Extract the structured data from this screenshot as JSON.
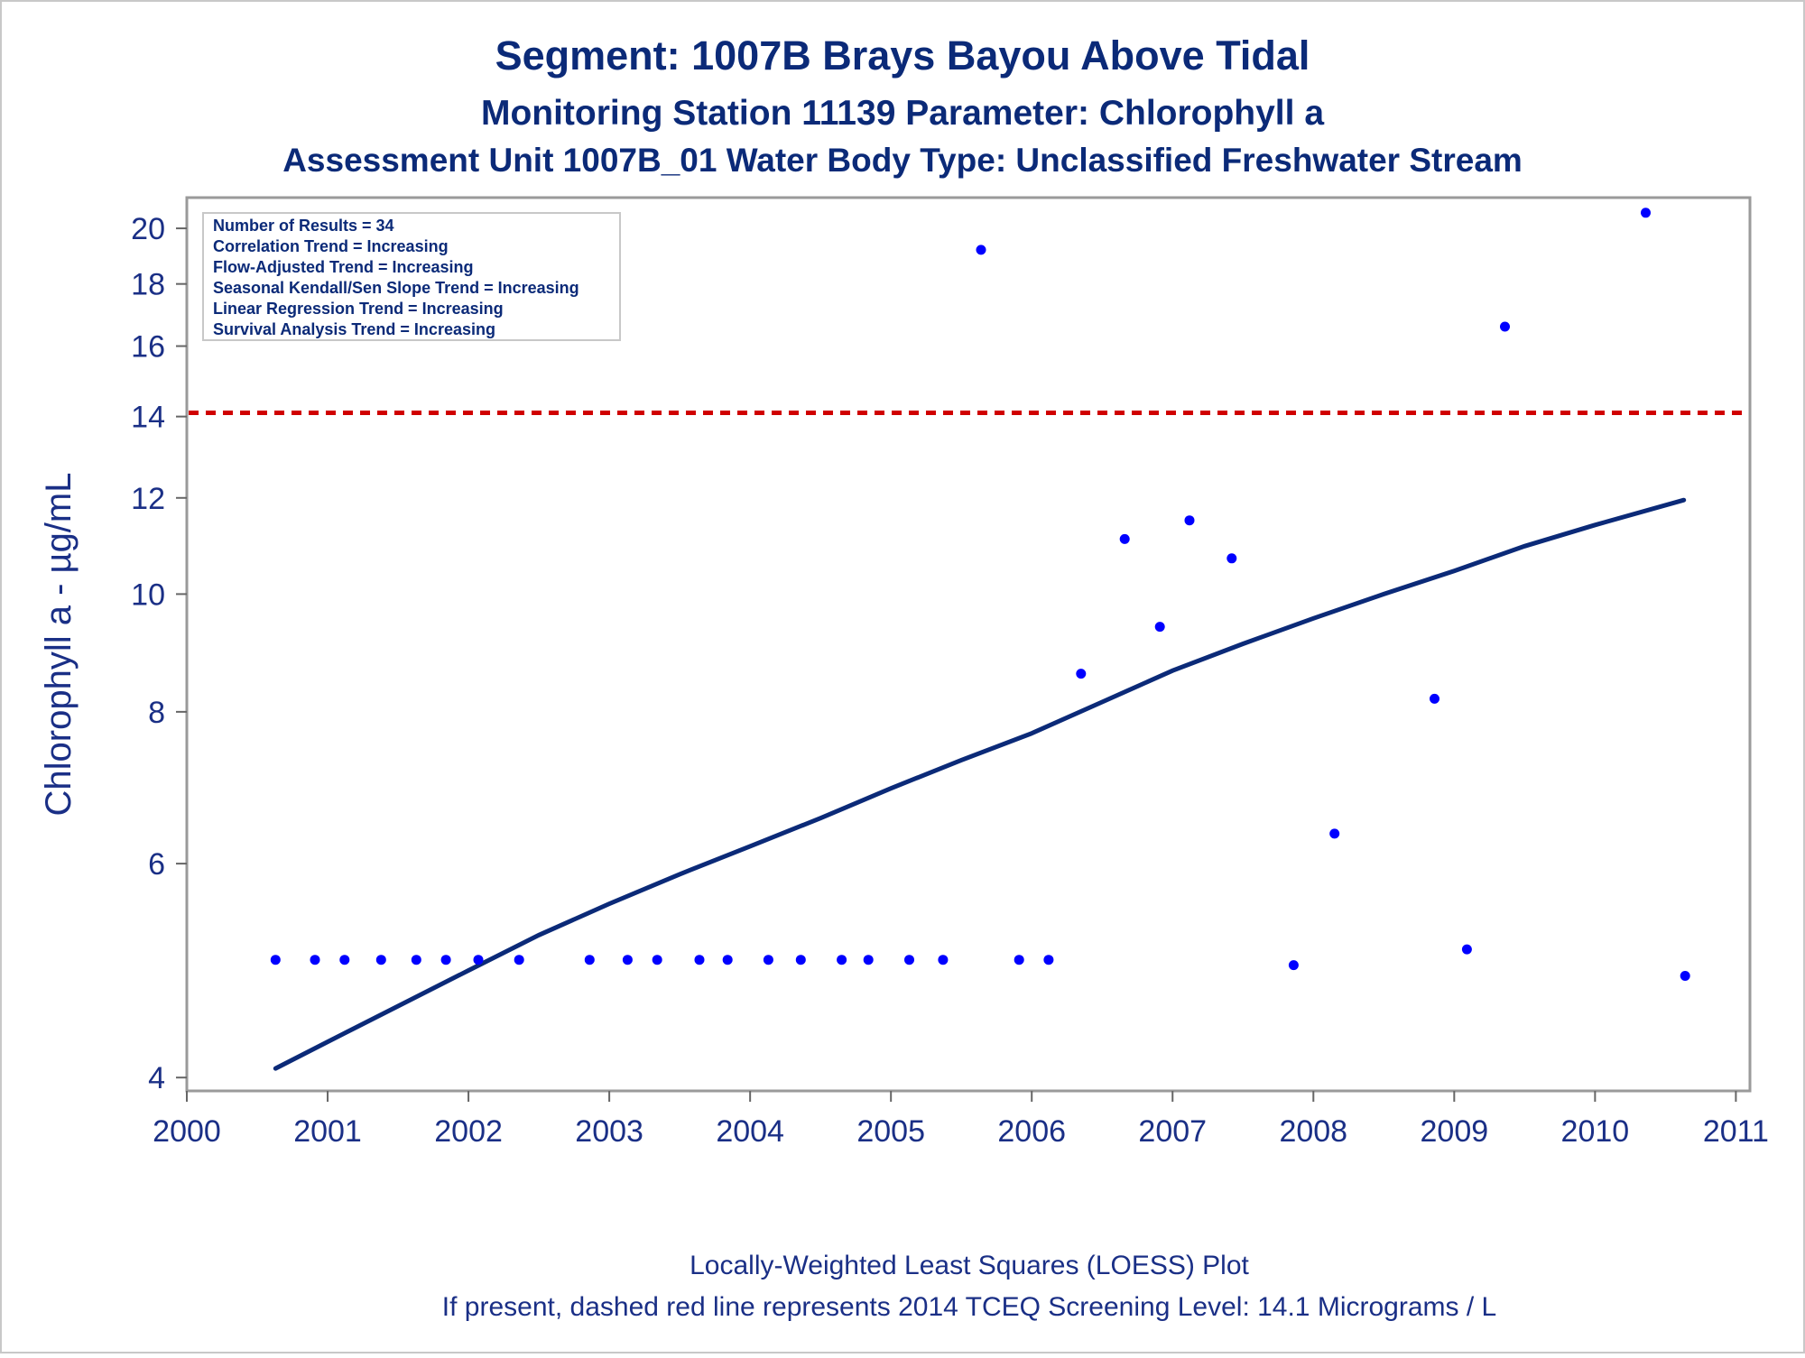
{
  "chart_data": {
    "type": "scatter",
    "title": "Segment: 1007B  Brays Bayou Above Tidal",
    "subtitle1": "Monitoring Station 11139 Parameter: Chlorophyll a",
    "subtitle2": "Assessment Unit 1007B_01   Water Body Type: Unclassified Freshwater Stream",
    "ylabel": "Chlorophyll a -  µg/mL",
    "xlabel": "",
    "x_ticks": [
      "2000",
      "2001",
      "2002",
      "2003",
      "2004",
      "2005",
      "2006",
      "2007",
      "2008",
      "2009",
      "2010",
      "2011"
    ],
    "x_tick_values": [
      2000,
      2001,
      2002,
      2003,
      2004,
      2005,
      2006,
      2007,
      2008,
      2009,
      2010,
      2011
    ],
    "y_ticks": [
      "4",
      "6",
      "8",
      "10",
      "12",
      "14",
      "16",
      "18",
      "20"
    ],
    "y_tick_values": [
      4,
      6,
      8,
      10,
      12,
      14,
      16,
      18,
      20
    ],
    "xlim": [
      2000,
      2011.1
    ],
    "ylim": [
      3.9,
      21.2
    ],
    "y_scale": "log",
    "grid": false,
    "legend_placement": "top-left",
    "legend": [
      "Number of Results = 34",
      "Correlation Trend = Increasing",
      "Flow-Adjusted Trend = Increasing",
      "Seasonal Kendall/Sen Slope Trend = Increasing",
      "Linear Regression Trend = Increasing",
      "Survival Analysis Trend = Increasing"
    ],
    "series": [
      {
        "type": "scatter",
        "color": "#0000ff",
        "points": [
          {
            "x": 2000.63,
            "y": 5.0
          },
          {
            "x": 2000.91,
            "y": 5.0
          },
          {
            "x": 2001.12,
            "y": 5.0
          },
          {
            "x": 2001.38,
            "y": 5.0
          },
          {
            "x": 2001.63,
            "y": 5.0
          },
          {
            "x": 2001.84,
            "y": 5.0
          },
          {
            "x": 2002.07,
            "y": 5.0
          },
          {
            "x": 2002.36,
            "y": 5.0
          },
          {
            "x": 2002.86,
            "y": 5.0
          },
          {
            "x": 2003.13,
            "y": 5.0
          },
          {
            "x": 2003.34,
            "y": 5.0
          },
          {
            "x": 2003.64,
            "y": 5.0
          },
          {
            "x": 2003.84,
            "y": 5.0
          },
          {
            "x": 2004.13,
            "y": 5.0
          },
          {
            "x": 2004.36,
            "y": 5.0
          },
          {
            "x": 2004.65,
            "y": 5.0
          },
          {
            "x": 2004.84,
            "y": 5.0
          },
          {
            "x": 2005.13,
            "y": 5.0
          },
          {
            "x": 2005.37,
            "y": 5.0
          },
          {
            "x": 2005.64,
            "y": 19.2
          },
          {
            "x": 2005.91,
            "y": 5.0
          },
          {
            "x": 2006.12,
            "y": 5.0
          },
          {
            "x": 2006.35,
            "y": 8.6
          },
          {
            "x": 2006.66,
            "y": 11.1
          },
          {
            "x": 2006.91,
            "y": 9.4
          },
          {
            "x": 2007.12,
            "y": 11.5
          },
          {
            "x": 2007.42,
            "y": 10.7
          },
          {
            "x": 2007.86,
            "y": 4.95
          },
          {
            "x": 2008.15,
            "y": 6.35
          },
          {
            "x": 2008.86,
            "y": 8.2
          },
          {
            "x": 2009.09,
            "y": 5.1
          },
          {
            "x": 2009.36,
            "y": 16.6
          },
          {
            "x": 2010.36,
            "y": 20.6
          },
          {
            "x": 2010.64,
            "y": 4.85
          }
        ]
      },
      {
        "type": "line",
        "label": "LOESS",
        "color": "#0b2a78",
        "points": [
          {
            "x": 2000.63,
            "y": 4.07
          },
          {
            "x": 2001.0,
            "y": 4.28
          },
          {
            "x": 2001.5,
            "y": 4.58
          },
          {
            "x": 2002.0,
            "y": 4.9
          },
          {
            "x": 2002.5,
            "y": 5.24
          },
          {
            "x": 2003.0,
            "y": 5.56
          },
          {
            "x": 2003.5,
            "y": 5.88
          },
          {
            "x": 2004.0,
            "y": 6.2
          },
          {
            "x": 2004.5,
            "y": 6.54
          },
          {
            "x": 2005.0,
            "y": 6.92
          },
          {
            "x": 2005.5,
            "y": 7.3
          },
          {
            "x": 2006.0,
            "y": 7.68
          },
          {
            "x": 2006.5,
            "y": 8.15
          },
          {
            "x": 2007.0,
            "y": 8.65
          },
          {
            "x": 2007.5,
            "y": 9.1
          },
          {
            "x": 2008.0,
            "y": 9.55
          },
          {
            "x": 2008.5,
            "y": 10.0
          },
          {
            "x": 2009.0,
            "y": 10.45
          },
          {
            "x": 2009.5,
            "y": 10.95
          },
          {
            "x": 2010.0,
            "y": 11.4
          },
          {
            "x": 2010.63,
            "y": 11.95
          }
        ]
      }
    ],
    "reference_line": {
      "y": 14.1,
      "color": "#d00000",
      "style": "dashed"
    },
    "footnotes": [
      "Locally-Weighted Least Squares (LOESS) Plot",
      "If present, dashed red line represents 2014 TCEQ Screening Level: 14.1 Micrograms / L"
    ]
  }
}
